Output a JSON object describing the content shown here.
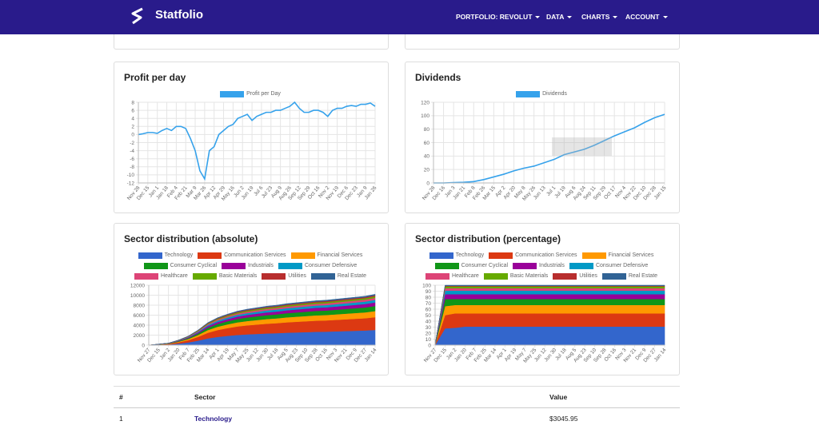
{
  "navbar": {
    "brand": "Statfolio",
    "items": [
      "PORTFOLIO: REVOLUT",
      "DATA",
      "CHARTS",
      "ACCOUNT"
    ]
  },
  "chart_data": [
    {
      "type": "line",
      "title": "Profit per day",
      "categories": [
        "Nov 28",
        null,
        "Dec 15",
        null,
        "Jan 1",
        null,
        "Jan 18",
        null,
        "Feb 4",
        null,
        "Feb 21",
        null,
        "Mar 9",
        null,
        "Mar 26",
        null,
        "Apr 12",
        null,
        "Apr 29",
        null,
        "May 16",
        null,
        "Jun 2",
        null,
        "Jun 19",
        null,
        "Jul 6",
        null,
        "Jul 23",
        null,
        "Aug 9",
        null,
        "Aug 26",
        null,
        "Sep 12",
        null,
        "Sep 29",
        null,
        "Oct 16",
        null,
        "Nov 2",
        null,
        "Nov 19",
        null,
        "Dec 6",
        null,
        "Dec 23",
        null,
        "Jan 9",
        null,
        "Jan 26"
      ],
      "series": [
        {
          "name": "Profit per Day",
          "color": "#36a2eb",
          "values": [
            0,
            0.2,
            0.5,
            0.5,
            0.3,
            1,
            1.5,
            1,
            2,
            2,
            1.5,
            -1,
            -4,
            -9,
            -11,
            -4,
            -3,
            0,
            1,
            2,
            2.5,
            4,
            4.5,
            5,
            3.5,
            4.5,
            5,
            5.5,
            5.5,
            6,
            6,
            6.5,
            7,
            8,
            6.5,
            5.5,
            5.5,
            6,
            6,
            5.5,
            4.5,
            6,
            6.5,
            6.5,
            7,
            7.2,
            7,
            7.5,
            7.5,
            7.8,
            7
          ]
        }
      ],
      "ylim": [
        -12,
        8
      ],
      "yticks": [
        -12,
        -10,
        -8,
        -6,
        -4,
        -2,
        0,
        2,
        4,
        6,
        8
      ],
      "grid": true
    },
    {
      "type": "line",
      "title": "Dividends",
      "categories": [
        "Nov 28",
        "Dec 16",
        "Jan 3",
        "Jan 21",
        "Feb 8",
        "Feb 26",
        "Mar 15",
        "Apr 2",
        "Apr 20",
        "May 8",
        "May 26",
        "Jun 13",
        "Jul 1",
        "Jul 19",
        "Aug 6",
        "Aug 24",
        "Sep 11",
        "Sep 29",
        "Oct 17",
        "Nov 4",
        "Nov 22",
        "Dec 10",
        "Dec 28",
        "Jan 15"
      ],
      "series": [
        {
          "name": "Dividends",
          "color": "#36a2eb",
          "values": [
            0,
            0,
            0.5,
            1,
            2,
            5,
            9,
            13,
            18,
            22,
            25,
            30,
            35,
            42,
            46,
            50,
            56,
            63,
            70,
            76,
            82,
            90,
            97,
            102
          ]
        }
      ],
      "ylim": [
        0,
        120
      ],
      "yticks": [
        0,
        20,
        40,
        60,
        80,
        100,
        120
      ],
      "grid": true
    },
    {
      "type": "area",
      "stacked": true,
      "title": "Sector distribution (absolute)",
      "categories": [
        "Nov 27",
        "Dec 15",
        "Jan 2",
        "Jan 20",
        "Feb 7",
        "Feb 25",
        "Mar 14",
        "Apr 1",
        "Apr 19",
        "May 7",
        "May 25",
        "Jun 12",
        "Jun 30",
        "Jul 18",
        "Aug 5",
        "Aug 23",
        "Sep 10",
        "Sep 28",
        "Oct 16",
        "Nov 3",
        "Nov 21",
        "Dec 9",
        "Dec 27",
        "Jan 14"
      ],
      "series": [
        {
          "name": "Technology",
          "color": "#3366cc",
          "values": [
            0,
            60,
            120,
            300,
            540,
            900,
            1350,
            1650,
            1860,
            2040,
            2160,
            2250,
            2340,
            2400,
            2490,
            2550,
            2610,
            2670,
            2700,
            2760,
            2820,
            2880,
            2940,
            3046
          ]
        },
        {
          "name": "Communication Services",
          "color": "#dc3912",
          "values": [
            0,
            50,
            100,
            250,
            450,
            750,
            1125,
            1375,
            1550,
            1700,
            1800,
            1875,
            1950,
            2000,
            2075,
            2125,
            2175,
            2225,
            2250,
            2300,
            2350,
            2400,
            2450,
            2550
          ]
        },
        {
          "name": "Financial Services",
          "color": "#ff9900",
          "values": [
            0,
            24,
            48,
            120,
            216,
            360,
            540,
            660,
            744,
            816,
            864,
            900,
            936,
            960,
            996,
            1020,
            1044,
            1068,
            1080,
            1104,
            1128,
            1152,
            1176,
            1224
          ]
        },
        {
          "name": "Consumer Cyclical",
          "color": "#109618",
          "values": [
            0,
            20,
            40,
            100,
            180,
            300,
            450,
            550,
            620,
            680,
            720,
            750,
            780,
            800,
            830,
            850,
            870,
            890,
            900,
            920,
            940,
            960,
            980,
            1020
          ]
        },
        {
          "name": "Industrials",
          "color": "#990099",
          "values": [
            0,
            14,
            28,
            70,
            126,
            210,
            315,
            385,
            434,
            476,
            504,
            525,
            546,
            560,
            581,
            595,
            609,
            623,
            630,
            644,
            658,
            672,
            686,
            714
          ]
        },
        {
          "name": "Consumer Defensive",
          "color": "#0099c6",
          "values": [
            0,
            10,
            20,
            50,
            90,
            150,
            225,
            275,
            310,
            340,
            360,
            375,
            390,
            400,
            415,
            425,
            435,
            445,
            450,
            460,
            470,
            480,
            490,
            510
          ]
        },
        {
          "name": "Healthcare",
          "color": "#dd4477",
          "values": [
            0,
            8,
            16,
            40,
            72,
            120,
            180,
            220,
            248,
            272,
            288,
            300,
            312,
            320,
            332,
            340,
            348,
            356,
            360,
            368,
            376,
            384,
            392,
            408
          ]
        },
        {
          "name": "Basic Materials",
          "color": "#66aa00",
          "values": [
            0,
            6,
            12,
            30,
            54,
            90,
            135,
            165,
            186,
            204,
            216,
            225,
            234,
            240,
            249,
            255,
            261,
            267,
            270,
            276,
            282,
            288,
            294,
            306
          ]
        },
        {
          "name": "Utilities",
          "color": "#b82e2e",
          "values": [
            0,
            4,
            8,
            20,
            36,
            60,
            90,
            110,
            124,
            136,
            144,
            150,
            156,
            160,
            166,
            170,
            174,
            178,
            180,
            184,
            188,
            192,
            196,
            204
          ]
        },
        {
          "name": "Real Estate",
          "color": "#316395",
          "values": [
            0,
            4,
            8,
            20,
            36,
            60,
            90,
            110,
            124,
            136,
            144,
            150,
            156,
            160,
            166,
            170,
            174,
            178,
            180,
            184,
            188,
            192,
            196,
            204
          ]
        }
      ],
      "ylim": [
        0,
        12000
      ],
      "yticks": [
        0,
        2000,
        4000,
        6000,
        8000,
        10000,
        12000
      ],
      "grid": true
    },
    {
      "type": "area",
      "stacked": true,
      "title": "Sector distribution (percentage)",
      "categories": [
        "Nov 27",
        "Dec 15",
        "Jan 2",
        "Jan 20",
        "Feb 7",
        "Feb 25",
        "Mar 14",
        "Apr 1",
        "Apr 19",
        "May 7",
        "May 25",
        "Jun 12",
        "Jun 30",
        "Jul 18",
        "Aug 5",
        "Aug 23",
        "Sep 10",
        "Sep 28",
        "Oct 16",
        "Nov 3",
        "Nov 21",
        "Dec 9",
        "Dec 27",
        "Jan 14"
      ],
      "series": [
        {
          "name": "Technology",
          "color": "#3366cc",
          "values": [
            0,
            28,
            29,
            31,
            31,
            31,
            31,
            31,
            31,
            31,
            31,
            31,
            31,
            31,
            31,
            31,
            31,
            31,
            31,
            31,
            31,
            31,
            31,
            31
          ]
        },
        {
          "name": "Communication Services",
          "color": "#dc3912",
          "values": [
            0,
            22,
            24,
            22,
            22,
            22,
            22,
            22,
            22,
            22,
            22,
            22,
            22,
            22,
            22,
            22,
            22,
            22,
            22,
            22,
            22,
            22,
            22,
            22
          ]
        },
        {
          "name": "Financial Services",
          "color": "#ff9900",
          "values": [
            0,
            15,
            14,
            14,
            14,
            14,
            14,
            14,
            14,
            14,
            14,
            14,
            14,
            14,
            14,
            14,
            14,
            14,
            14,
            14,
            14,
            14,
            14,
            14
          ]
        },
        {
          "name": "Consumer Cyclical",
          "color": "#109618",
          "values": [
            0,
            12,
            10,
            10,
            10,
            10,
            10,
            10,
            10,
            10,
            10,
            10,
            10,
            10,
            10,
            10,
            10,
            10,
            10,
            10,
            10,
            10,
            10,
            10
          ]
        },
        {
          "name": "Industrials",
          "color": "#990099",
          "values": [
            0,
            8,
            8,
            8,
            8,
            8,
            8,
            8,
            8,
            8,
            8,
            8,
            8,
            8,
            8,
            8,
            8,
            8,
            8,
            8,
            8,
            8,
            8,
            8
          ]
        },
        {
          "name": "Consumer Defensive",
          "color": "#0099c6",
          "values": [
            0,
            6,
            6,
            6,
            6,
            6,
            6,
            6,
            6,
            6,
            6,
            6,
            6,
            6,
            6,
            6,
            6,
            6,
            6,
            6,
            6,
            6,
            6,
            6
          ]
        },
        {
          "name": "Healthcare",
          "color": "#dd4477",
          "values": [
            0,
            4,
            4,
            4,
            4,
            4,
            4,
            4,
            4,
            4,
            4,
            4,
            4,
            4,
            4,
            4,
            4,
            4,
            4,
            4,
            4,
            4,
            4,
            4
          ]
        },
        {
          "name": "Basic Materials",
          "color": "#66aa00",
          "values": [
            0,
            3,
            3,
            3,
            3,
            3,
            3,
            3,
            3,
            3,
            3,
            3,
            3,
            3,
            3,
            3,
            3,
            3,
            3,
            3,
            3,
            3,
            3,
            3
          ]
        },
        {
          "name": "Utilities",
          "color": "#b82e2e",
          "values": [
            0,
            1,
            1,
            1,
            1,
            1,
            1,
            1,
            1,
            1,
            1,
            1,
            1,
            1,
            1,
            1,
            1,
            1,
            1,
            1,
            1,
            1,
            1,
            1
          ]
        },
        {
          "name": "Real Estate",
          "color": "#316395",
          "values": [
            0,
            1,
            1,
            1,
            1,
            1,
            1,
            1,
            1,
            1,
            1,
            1,
            1,
            1,
            1,
            1,
            1,
            1,
            1,
            1,
            1,
            1,
            1,
            1
          ]
        }
      ],
      "ylim": [
        0,
        100
      ],
      "yticks": [
        0,
        10,
        20,
        30,
        40,
        50,
        60,
        70,
        80,
        90,
        100
      ],
      "grid": true
    }
  ],
  "table": {
    "headers": [
      "#",
      "Sector",
      "Value"
    ],
    "rows": [
      [
        "1",
        "Technology",
        "$3045.95"
      ]
    ]
  }
}
